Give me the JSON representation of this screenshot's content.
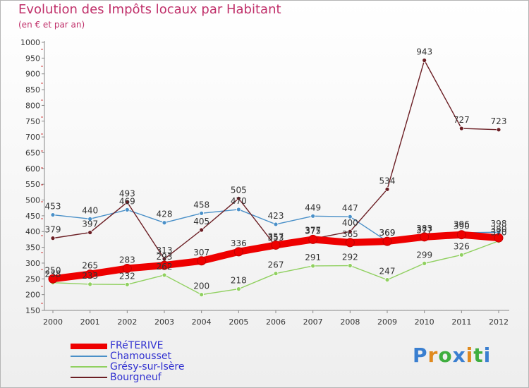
{
  "header": {
    "title": "Evolution des Impôts locaux par Habitant",
    "subtitle": "(en € et par an)"
  },
  "brand": {
    "text": "Proxiti",
    "letters": [
      "P",
      "r",
      "o",
      "x",
      "i",
      "t",
      "i"
    ],
    "colors": [
      "#3a7fd0",
      "#e08a1e",
      "#3fae3f",
      "#3a7fd0",
      "#e08a1e",
      "#3fae3f",
      "#3a7fd0"
    ]
  },
  "chart_data": {
    "type": "line",
    "title": "Evolution des Impôts locaux par Habitant",
    "subtitle": "(en € et par an)",
    "xlabel": "",
    "ylabel": "",
    "categories": [
      "2000",
      "2001",
      "2002",
      "2003",
      "2004",
      "2005",
      "2006",
      "2007",
      "2008",
      "2009",
      "2010",
      "2011",
      "2012"
    ],
    "yticks": [
      150,
      200,
      250,
      300,
      350,
      400,
      450,
      500,
      550,
      600,
      650,
      700,
      750,
      800,
      850,
      900,
      950,
      1000
    ],
    "ylim": [
      150,
      1000
    ],
    "grid": false,
    "legend_position": "bottom-left",
    "series": [
      {
        "name": "FRéTERIVE",
        "color": "#ee0000",
        "emphasis": true,
        "values": [
          250,
          265,
          283,
          293,
          307,
          336,
          357,
          375,
          365,
          369,
          383,
          390,
          380
        ]
      },
      {
        "name": "Chamousset",
        "color": "#4a90c8",
        "emphasis": false,
        "values": [
          453,
          440,
          469,
          428,
          458,
          470,
          423,
          449,
          447,
          369,
          377,
          396,
          398
        ]
      },
      {
        "name": "Grésy-sur-Isère",
        "color": "#90d060",
        "emphasis": false,
        "values": [
          238,
          233,
          232,
          262,
          200,
          218,
          267,
          291,
          292,
          247,
          299,
          326,
          370
        ]
      },
      {
        "name": "Bourgneuf",
        "color": "#6b1e24",
        "emphasis": false,
        "values": [
          379,
          397,
          493,
          313,
          405,
          505,
          353,
          377,
          400,
          534,
          943,
          727,
          723
        ]
      }
    ]
  }
}
